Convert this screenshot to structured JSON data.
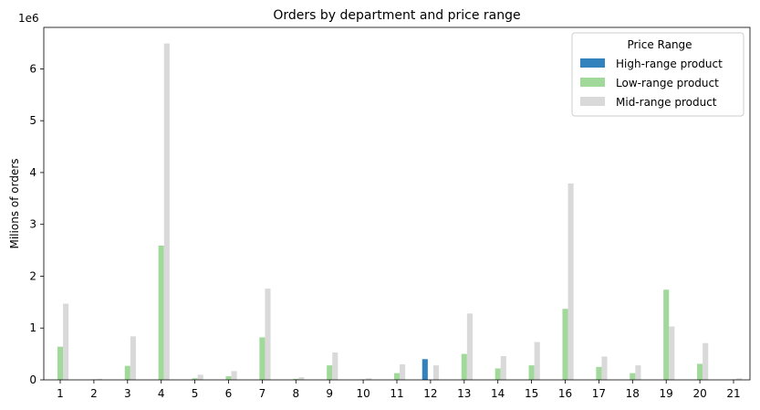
{
  "chart_data": {
    "type": "bar",
    "title": "Orders by department and price range",
    "xlabel": "",
    "ylabel": "Milions of orders",
    "y_offset_label": "1e6",
    "ylim": [
      0,
      6800000
    ],
    "yticks": [
      0,
      1000000,
      2000000,
      3000000,
      4000000,
      5000000,
      6000000
    ],
    "ytick_labels": [
      "0",
      "1",
      "2",
      "3",
      "4",
      "5",
      "6"
    ],
    "categories": [
      "1",
      "2",
      "3",
      "4",
      "5",
      "6",
      "7",
      "8",
      "9",
      "10",
      "11",
      "12",
      "13",
      "14",
      "15",
      "16",
      "17",
      "18",
      "19",
      "20",
      "21"
    ],
    "legend": {
      "title": "Price Range",
      "placement": "top-right"
    },
    "grid": false,
    "series": [
      {
        "name": "High-range product",
        "color": "#3182bd",
        "values": [
          0,
          0,
          0,
          0,
          0,
          0,
          0,
          0,
          0,
          0,
          0,
          400000,
          0,
          0,
          0,
          0,
          0,
          0,
          0,
          0,
          0
        ]
      },
      {
        "name": "Low-range product",
        "color": "#a1d99b",
        "values": [
          640000,
          10000,
          270000,
          2590000,
          30000,
          70000,
          820000,
          20000,
          280000,
          10000,
          130000,
          0,
          500000,
          220000,
          280000,
          1370000,
          250000,
          130000,
          1740000,
          310000,
          10000
        ]
      },
      {
        "name": "Mid-range product",
        "color": "#d9d9d9",
        "values": [
          1470000,
          20000,
          840000,
          6490000,
          100000,
          170000,
          1760000,
          50000,
          530000,
          30000,
          300000,
          280000,
          1280000,
          460000,
          730000,
          3790000,
          450000,
          280000,
          1030000,
          710000,
          30000
        ]
      }
    ]
  }
}
